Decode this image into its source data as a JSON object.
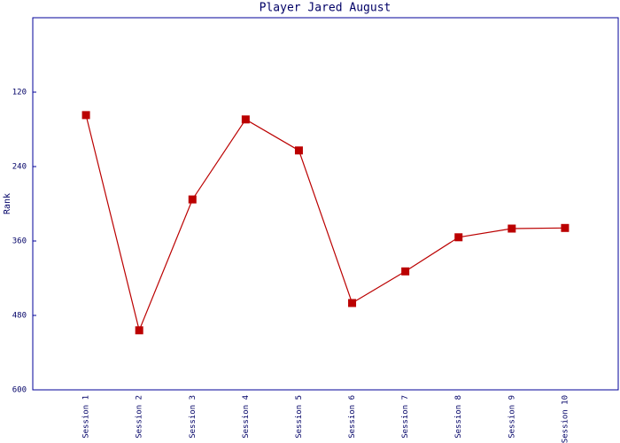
{
  "chart_data": {
    "type": "line",
    "title": "Player Jared August",
    "y_label": "Rank",
    "categories": [
      "Session 1",
      "Session 2",
      "Session 3",
      "Session 4",
      "Session 5",
      "Session 6",
      "Session 7",
      "Session 8",
      "Session 9",
      "Session 10"
    ],
    "series": [
      {
        "name": "Rank",
        "color": "#bb0000",
        "values": [
          157,
          504,
          293,
          164,
          214,
          460,
          409,
          354,
          340,
          339
        ]
      }
    ],
    "ylim": [
      0,
      600
    ],
    "yticks": [
      120,
      240,
      360,
      480,
      600
    ],
    "y_inverted": true,
    "grid": false
  }
}
